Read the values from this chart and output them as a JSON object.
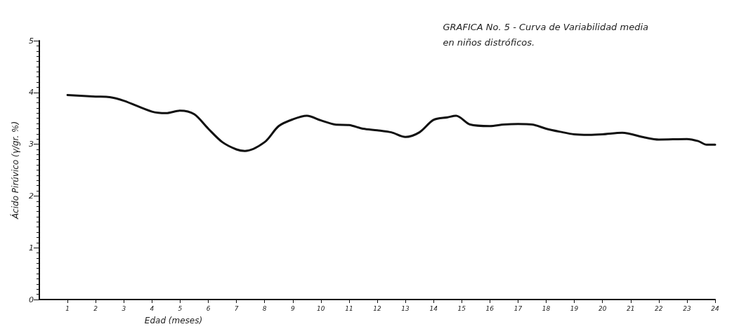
{
  "chart_data": {
    "type": "line",
    "title": "GRAFICA No. 5 - Curva de Variabilidad media\nen niños distróficos.",
    "xlabel": "Edad (meses)",
    "ylabel": "Ácido Pirúvico (γ/gr. %)",
    "xlim": [
      0,
      24
    ],
    "xticks": [
      1,
      2,
      3,
      4,
      5,
      6,
      7,
      8,
      9,
      10,
      11,
      12,
      13,
      14,
      15,
      16,
      17,
      18,
      19,
      20,
      21,
      22,
      23,
      24
    ],
    "ylim": [
      0,
      5
    ],
    "yticks": [
      0,
      1,
      2,
      3,
      4,
      5
    ],
    "grid": false,
    "marker": "none",
    "line_style": "solid",
    "series": [
      {
        "color": "#111111",
        "x": [
          1,
          2,
          2.5,
          3,
          4,
          4.5,
          5,
          5.5,
          6,
          6.5,
          7,
          7.3,
          8,
          8.5,
          9,
          9.5,
          10,
          10.5,
          11,
          11.5,
          12,
          12.5,
          13,
          13.5,
          14,
          14.5,
          14.8,
          15.3,
          16,
          16.5,
          17,
          17.5,
          18,
          18.5,
          19,
          19.5,
          20,
          20.7,
          21.5,
          22,
          23,
          23.4,
          23.7,
          24
        ],
        "values": [
          3.95,
          3.92,
          3.91,
          3.84,
          3.63,
          3.6,
          3.65,
          3.58,
          3.3,
          3.04,
          2.9,
          2.87,
          3.04,
          3.35,
          3.48,
          3.55,
          3.46,
          3.38,
          3.37,
          3.3,
          3.27,
          3.23,
          3.14,
          3.23,
          3.47,
          3.52,
          3.55,
          3.38,
          3.35,
          3.38,
          3.39,
          3.38,
          3.3,
          3.24,
          3.19,
          3.18,
          3.19,
          3.22,
          3.13,
          3.09,
          3.1,
          3.06,
          2.99,
          2.99
        ]
      }
    ]
  }
}
